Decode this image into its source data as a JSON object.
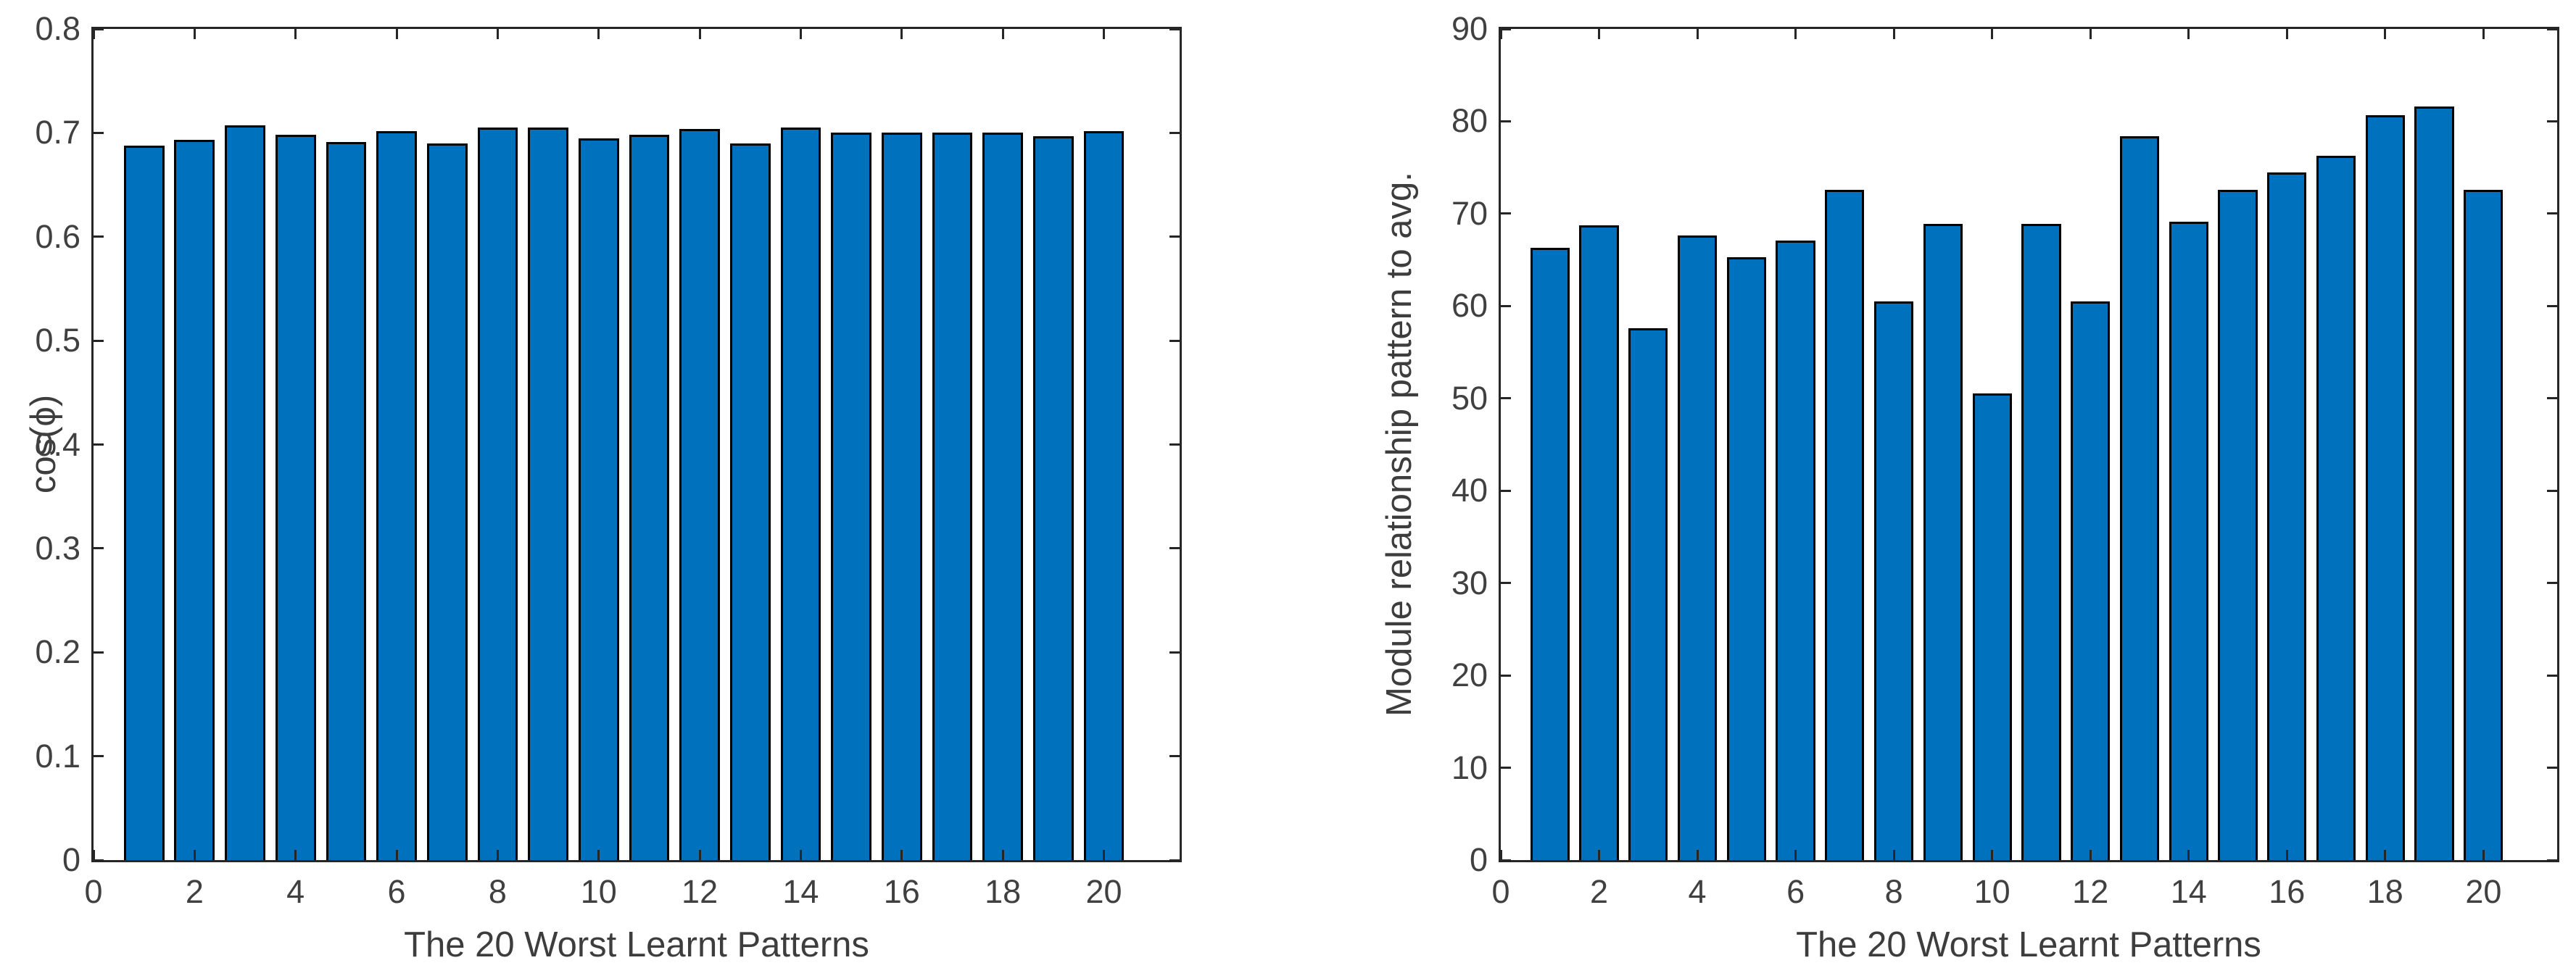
{
  "figure": {
    "background": "#ffffff",
    "bar_fill": "#0072bd",
    "bar_edge": "#000000",
    "axis_color": "#262626",
    "text_color": "#404040"
  },
  "chart_data": [
    {
      "type": "bar",
      "title": "",
      "xlabel": "The 20 Worst Learnt Patterns",
      "ylabel": "cos(ϕ)",
      "categories": [
        1,
        2,
        3,
        4,
        5,
        6,
        7,
        8,
        9,
        10,
        11,
        12,
        13,
        14,
        15,
        16,
        17,
        18,
        19,
        20
      ],
      "values": [
        0.688,
        0.693,
        0.707,
        0.698,
        0.691,
        0.702,
        0.69,
        0.705,
        0.705,
        0.695,
        0.698,
        0.704,
        0.69,
        0.705,
        0.7,
        0.7,
        0.7,
        0.7,
        0.697,
        0.702
      ],
      "xlim": [
        0,
        21.5
      ],
      "ylim": [
        0,
        0.8
      ],
      "xticks": [
        0,
        2,
        4,
        6,
        8,
        10,
        12,
        14,
        16,
        18,
        20
      ],
      "xtick_labels": [
        "0",
        "2",
        "4",
        "6",
        "8",
        "10",
        "12",
        "14",
        "16",
        "18",
        "20"
      ],
      "yticks": [
        0,
        0.1,
        0.2,
        0.3,
        0.4,
        0.5,
        0.6,
        0.7,
        0.8
      ],
      "ytick_labels": [
        "0",
        "0.1",
        "0.2",
        "0.3",
        "0.4",
        "0.5",
        "0.6",
        "0.7",
        "0.8"
      ],
      "bar_width_ratio": 0.8,
      "grid": false,
      "legend": null,
      "bar_color": "#0072bd"
    },
    {
      "type": "bar",
      "title": "",
      "xlabel": "The 20 Worst Learnt Patterns",
      "ylabel": "Module relationship pattern to avg.",
      "categories": [
        1,
        2,
        3,
        4,
        5,
        6,
        7,
        8,
        9,
        10,
        11,
        12,
        13,
        14,
        15,
        16,
        17,
        18,
        19,
        20
      ],
      "values": [
        66.3,
        68.7,
        57.6,
        67.6,
        65.3,
        67.1,
        72.6,
        60.5,
        68.9,
        50.5,
        68.9,
        60.5,
        78.4,
        69.1,
        72.6,
        74.5,
        76.3,
        80.7,
        81.6,
        72.6
      ],
      "xlim": [
        0,
        21.5
      ],
      "ylim": [
        0,
        90
      ],
      "xticks": [
        0,
        2,
        4,
        6,
        8,
        10,
        12,
        14,
        16,
        18,
        20
      ],
      "xtick_labels": [
        "0",
        "2",
        "4",
        "6",
        "8",
        "10",
        "12",
        "14",
        "16",
        "18",
        "20"
      ],
      "yticks": [
        0,
        10,
        20,
        30,
        40,
        50,
        60,
        70,
        80,
        90
      ],
      "ytick_labels": [
        "0",
        "10",
        "20",
        "30",
        "40",
        "50",
        "60",
        "70",
        "80",
        "90"
      ],
      "bar_width_ratio": 0.8,
      "grid": false,
      "legend": null,
      "bar_color": "#0072bd"
    }
  ]
}
